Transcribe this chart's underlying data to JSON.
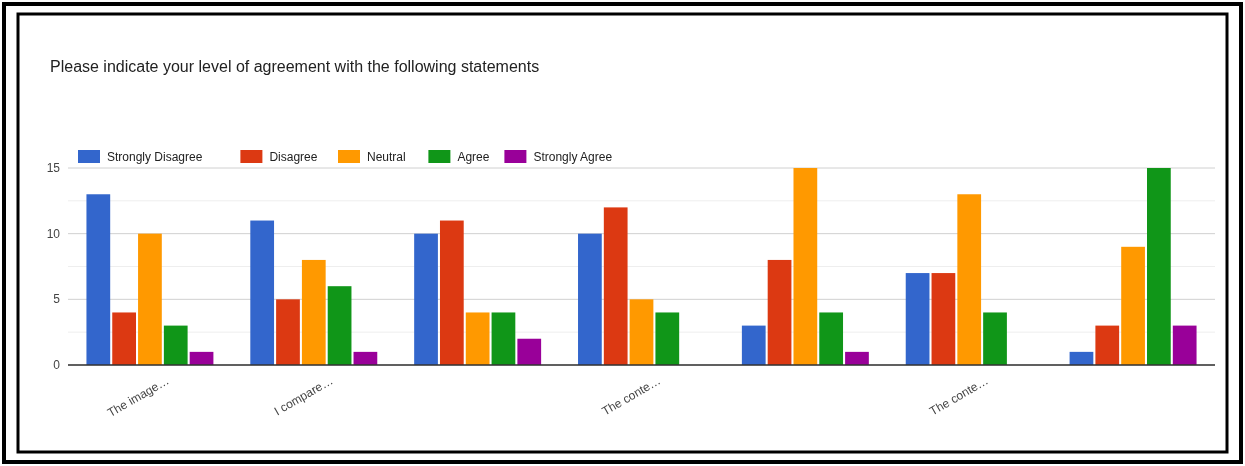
{
  "chart_data": {
    "type": "bar",
    "title": "Please indicate your level of agreement with the following statements",
    "categories": [
      "The image…",
      "I compare…",
      null,
      "The conte…",
      null,
      "The conte…",
      null
    ],
    "series": [
      {
        "name": "Strongly Disagree",
        "color": "#3366cc",
        "values": [
          13,
          11,
          10,
          10,
          3,
          7,
          1
        ]
      },
      {
        "name": "Disagree",
        "color": "#dc3912",
        "values": [
          4,
          5,
          11,
          12,
          8,
          7,
          3
        ]
      },
      {
        "name": "Neutral",
        "color": "#ff9900",
        "values": [
          10,
          8,
          4,
          5,
          15,
          13,
          9
        ]
      },
      {
        "name": "Agree",
        "color": "#109618",
        "values": [
          3,
          6,
          4,
          4,
          4,
          4,
          15
        ]
      },
      {
        "name": "Strongly Agree",
        "color": "#990099",
        "values": [
          1,
          1,
          2,
          0,
          1,
          0,
          3
        ]
      }
    ],
    "ylim": [
      0,
      15
    ],
    "yticks": [
      0,
      {
        "value": 2.5,
        "label": null
      },
      5,
      {
        "value": 7.5,
        "label": null
      },
      10,
      {
        "value": 12.5,
        "label": null
      },
      15
    ],
    "grid": true,
    "legend": "top left"
  }
}
